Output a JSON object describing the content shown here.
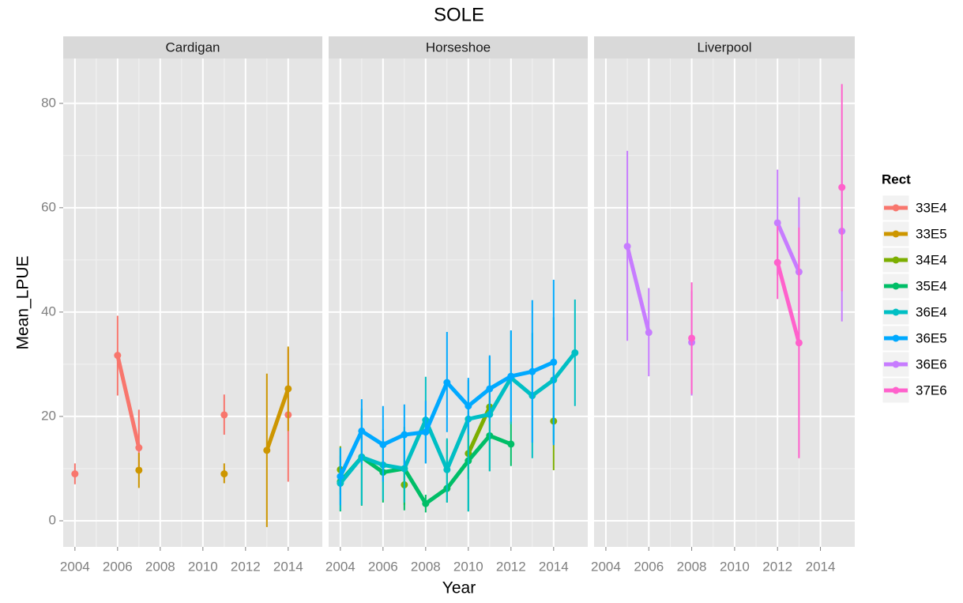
{
  "chart_data": {
    "type": "line",
    "title": "SOLE",
    "x_label": "Year",
    "y_label": "Mean_LPUE",
    "legend_title": "Rect",
    "facets": [
      "Cardigan",
      "Horseshoe",
      "Liverpool"
    ],
    "x": [
      2004,
      2005,
      2006,
      2007,
      2008,
      2009,
      2010,
      2011,
      2012,
      2013,
      2014,
      2015
    ],
    "xlim": [
      2003.45,
      2015.6
    ],
    "xticks": [
      2004,
      2006,
      2008,
      2010,
      2012,
      2014
    ],
    "ylim": [
      -5,
      88.6
    ],
    "yticks": [
      0,
      20,
      40,
      60,
      80
    ],
    "grid": true,
    "series": [
      {
        "name": "33E4",
        "color": "#F8766D",
        "panels": [
          {
            "values": [
              9,
              null,
              31.7,
              14,
              null,
              null,
              null,
              20.3,
              null,
              null,
              20.3,
              null
            ],
            "lower": [
              7,
              null,
              24,
              10,
              null,
              null,
              null,
              16.5,
              null,
              null,
              7.5,
              null
            ],
            "upper": [
              11,
              null,
              39.3,
              21.3,
              null,
              null,
              null,
              24.2,
              null,
              null,
              33,
              null
            ]
          },
          null,
          null
        ]
      },
      {
        "name": "33E5",
        "color": "#CD9600",
        "panels": [
          {
            "values": [
              null,
              null,
              null,
              9.7,
              null,
              null,
              null,
              9,
              null,
              13.5,
              25.3,
              null
            ],
            "lower": [
              null,
              null,
              null,
              6.3,
              null,
              null,
              null,
              7.2,
              null,
              -1.2,
              17.2,
              null
            ],
            "upper": [
              null,
              null,
              null,
              13,
              null,
              null,
              null,
              11,
              null,
              28.2,
              33.4,
              null
            ]
          },
          null,
          null
        ]
      },
      {
        "name": "34E4",
        "color": "#7CAE00",
        "panels": [
          null,
          {
            "values": [
              9.8,
              null,
              null,
              6.9,
              null,
              null,
              12.9,
              21.8,
              null,
              null,
              19.1,
              null
            ],
            "lower": [
              5,
              null,
              null,
              3,
              null,
              null,
              8,
              19,
              null,
              null,
              9.7,
              null
            ],
            "upper": [
              14.3,
              null,
              null,
              10.5,
              null,
              null,
              18,
              24,
              null,
              null,
              28.5,
              null
            ]
          },
          null
        ]
      },
      {
        "name": "35E4",
        "color": "#00BE67",
        "panels": [
          null,
          {
            "values": [
              7.5,
              12.2,
              9.3,
              10,
              3.3,
              6.2,
              11.5,
              16.3,
              14.7,
              null,
              null,
              null
            ],
            "lower": [
              1.8,
              2.9,
              3.5,
              2,
              1.6,
              3.5,
              1.8,
              9.5,
              10.5,
              null,
              null,
              null
            ],
            "upper": [
              14,
              21.5,
              15,
              18,
              5,
              15.5,
              21,
              23,
              19,
              null,
              null,
              null
            ]
          },
          null
        ]
      },
      {
        "name": "36E4",
        "color": "#00BFC4",
        "panels": [
          null,
          {
            "values": [
              7.2,
              12.2,
              10.7,
              10,
              19.3,
              9.8,
              19.5,
              20.4,
              27.4,
              24,
              27,
              32.2
            ],
            "lower": [
              2,
              3,
              4,
              3.5,
              11,
              3.5,
              1.8,
              9.5,
              18.5,
              12,
              15,
              22
            ],
            "upper": [
              12.5,
              21,
              17.5,
              16.5,
              27.6,
              15.8,
              27,
              31.5,
              36.4,
              36,
              39,
              42.4
            ]
          },
          null
        ]
      },
      {
        "name": "36E5",
        "color": "#00A9FF",
        "panels": [
          null,
          {
            "values": [
              8.5,
              17.2,
              14.6,
              16.5,
              17,
              26.5,
              22,
              25.3,
              27.7,
              28.6,
              30.4,
              null
            ],
            "lower": [
              3,
              11,
              7.5,
              10.5,
              11,
              17,
              16.5,
              19,
              19,
              15,
              14.5,
              null
            ],
            "upper": [
              14,
              23.3,
              22,
              22.3,
              23,
              36.2,
              27.4,
              31.7,
              36.5,
              42.3,
              46.2,
              null
            ]
          },
          null
        ]
      },
      {
        "name": "36E6",
        "color": "#C77CFF",
        "panels": [
          null,
          null,
          {
            "values": [
              null,
              52.6,
              36.1,
              null,
              34.2,
              null,
              null,
              null,
              57.1,
              47.7,
              null,
              55.5
            ],
            "lower": [
              null,
              34.5,
              27.7,
              null,
              24,
              null,
              null,
              null,
              47,
              33.5,
              null,
              38.2
            ],
            "upper": [
              null,
              70.9,
              44.6,
              null,
              44,
              null,
              null,
              null,
              67.3,
              62,
              null,
              73
            ]
          }
        ]
      },
      {
        "name": "37E6",
        "color": "#FF61CC",
        "panels": [
          null,
          null,
          {
            "values": [
              null,
              null,
              null,
              null,
              35,
              null,
              null,
              null,
              49.5,
              34.1,
              null,
              63.9
            ],
            "lower": [
              null,
              null,
              null,
              null,
              24.3,
              null,
              null,
              null,
              42.5,
              12,
              null,
              44
            ],
            "upper": [
              null,
              null,
              null,
              null,
              45.7,
              null,
              null,
              null,
              56.5,
              56.2,
              null,
              83.7
            ]
          }
        ]
      }
    ]
  }
}
